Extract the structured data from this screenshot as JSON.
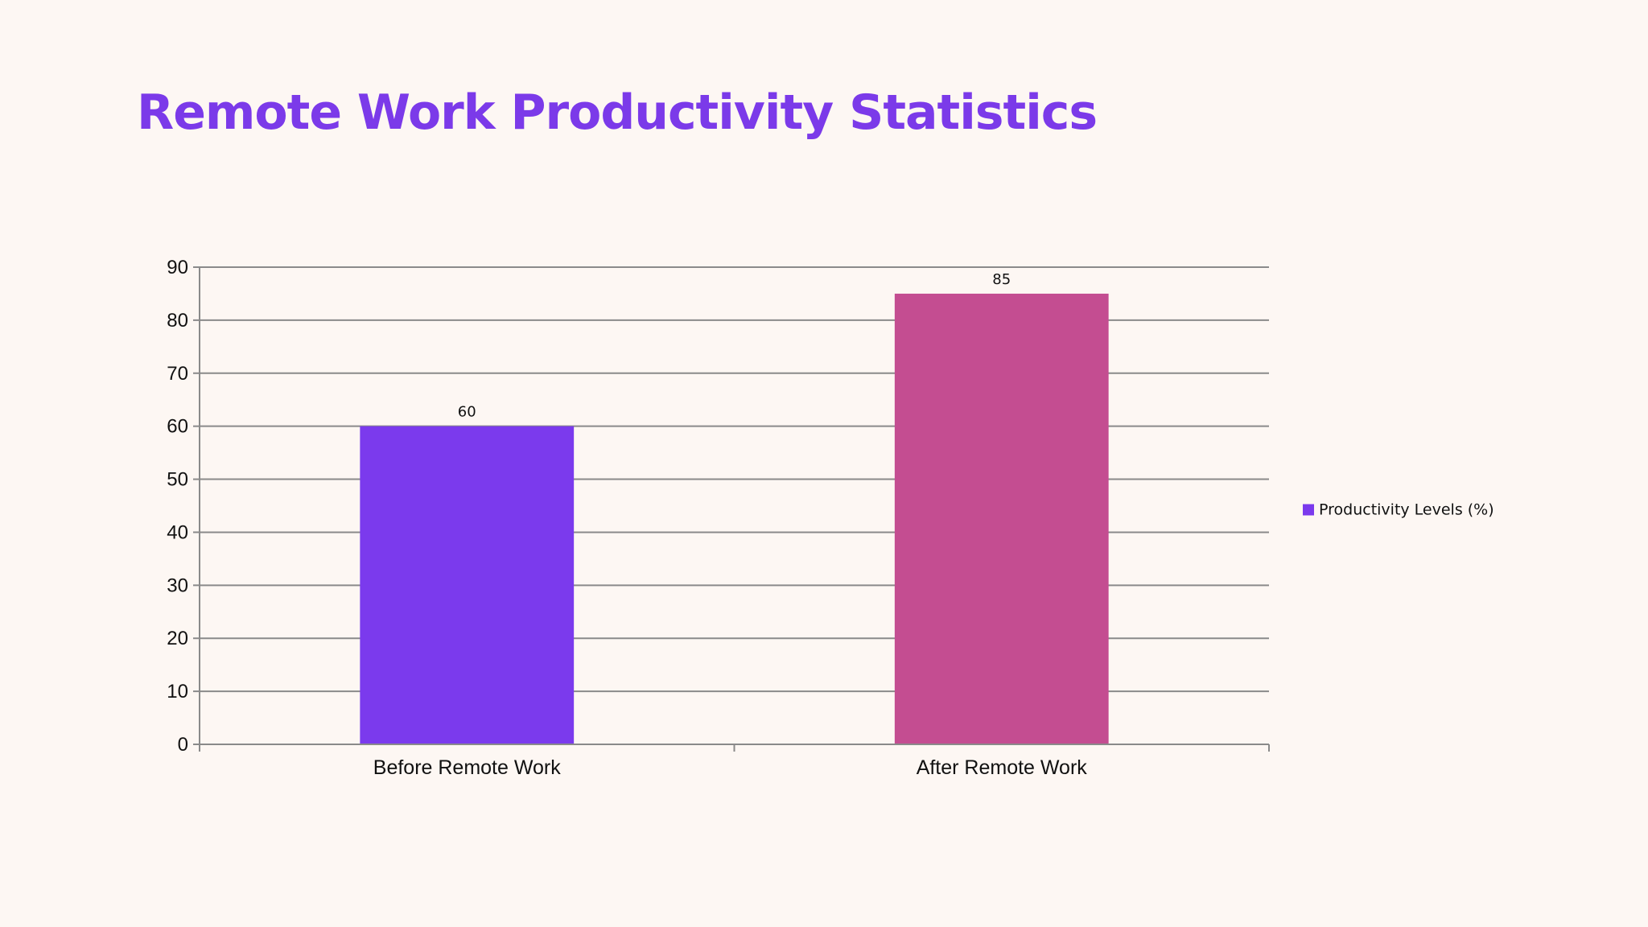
{
  "slide": {
    "title": "Remote Work Productivity Statistics"
  },
  "chart_data": {
    "type": "bar",
    "categories": [
      "Before Remote Work",
      "After Remote Work"
    ],
    "series": [
      {
        "name": "Productivity Levels (%)",
        "values": [
          60,
          85
        ],
        "colors": [
          "#7b3aed",
          "#c44d91"
        ],
        "legend_color": "#7b3aed"
      }
    ],
    "ylim": [
      0,
      90
    ],
    "ytick_step": 10,
    "grid": true,
    "legend_position": "right",
    "data_labels": true
  }
}
